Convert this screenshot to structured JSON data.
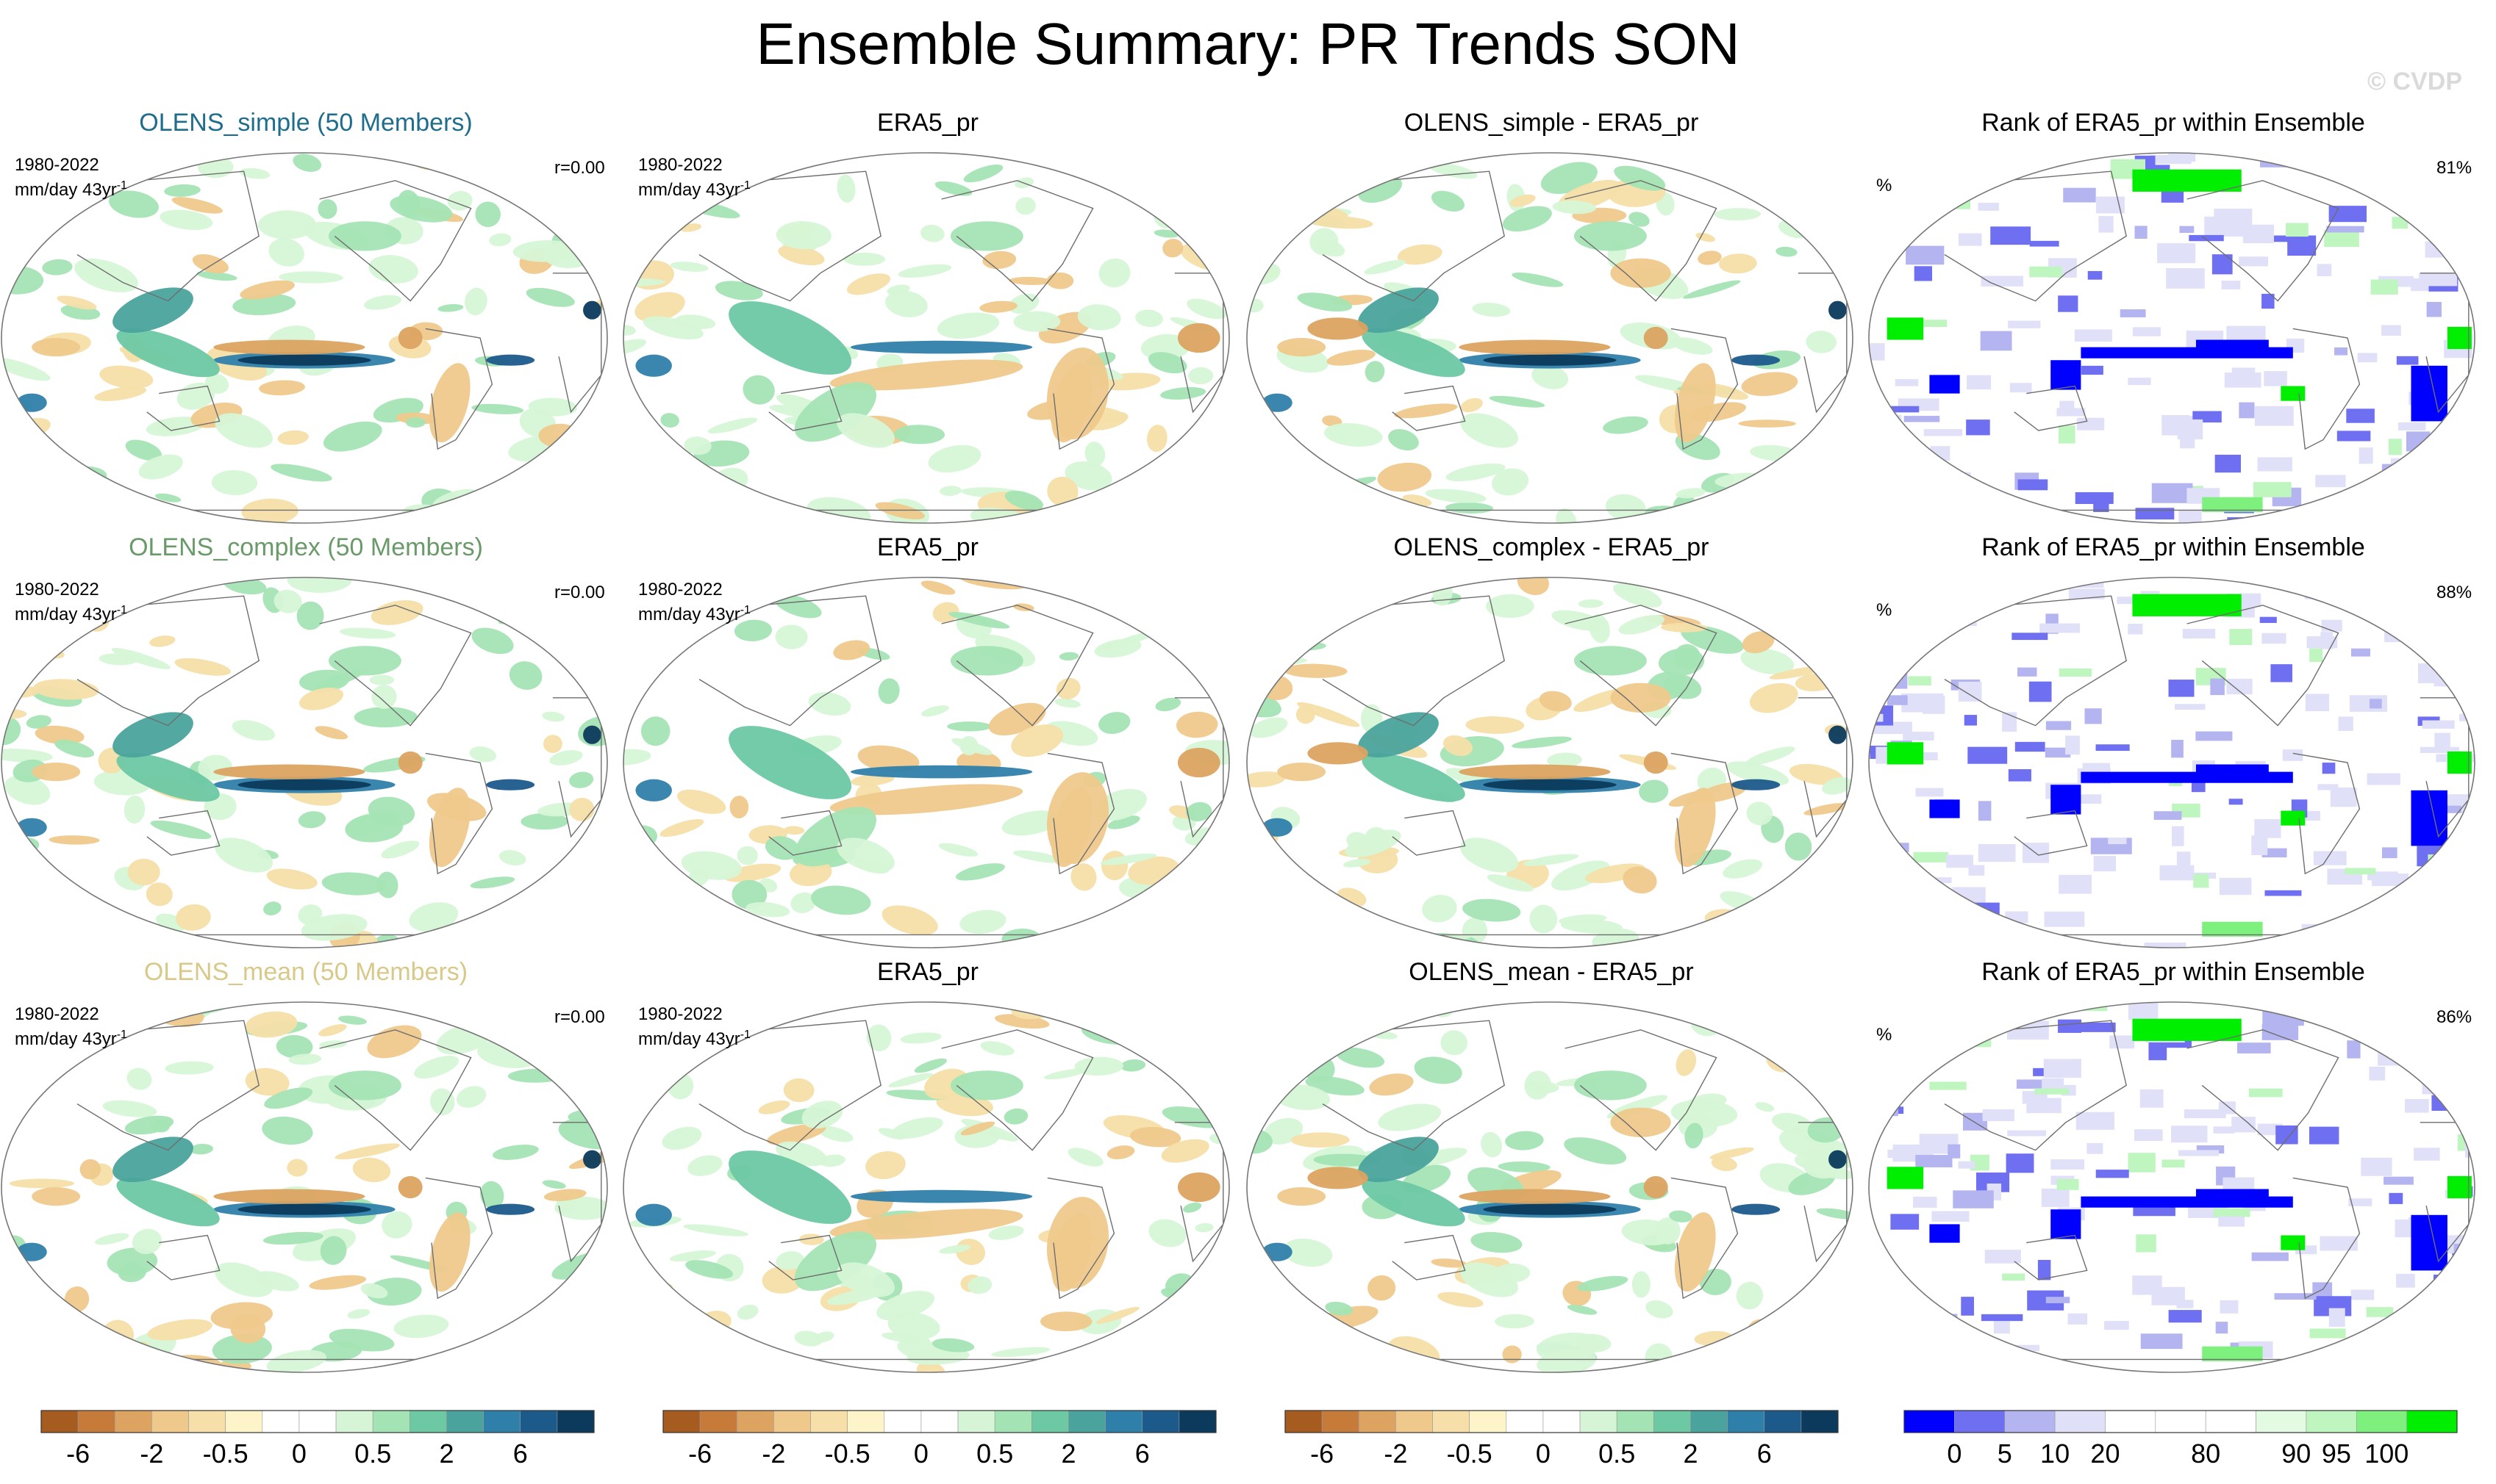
{
  "title": "Ensemble Summary: PR Trends SON",
  "watermark": "© CVDP",
  "period": "1980-2022",
  "units": "mm/day 43yr",
  "units_superscript": "-1",
  "rows": [
    {
      "ensemble_title": "OLENS_simple (50 Members)",
      "ensemble_color": "#1f6d8c",
      "r_label": "r=0.00",
      "obs_title": "ERA5_pr",
      "diff_title": "OLENS_simple - ERA5_pr",
      "rank_title": "Rank of ERA5_pr within Ensemble",
      "rank_symbol": "%",
      "rank_pct": "81%"
    },
    {
      "ensemble_title": "OLENS_complex (50 Members)",
      "ensemble_color": "#6a9a6a",
      "r_label": "r=0.00",
      "obs_title": "ERA5_pr",
      "diff_title": "OLENS_complex - ERA5_pr",
      "rank_title": "Rank of ERA5_pr within Ensemble",
      "rank_symbol": "%",
      "rank_pct": "88%"
    },
    {
      "ensemble_title": "OLENS_mean (50 Members)",
      "ensemble_color": "#d8c98a",
      "r_label": "r=0.00",
      "obs_title": "ERA5_pr",
      "diff_title": "OLENS_mean - ERA5_pr",
      "rank_title": "Rank of ERA5_pr within Ensemble",
      "rank_symbol": "%",
      "rank_pct": "86%"
    }
  ],
  "chart_data": {
    "type": "heatmap",
    "projection": "Robinson (global, Pacific-centered)",
    "trend_colorbar": {
      "units": "mm/day 43yr-1",
      "colors": [
        "#a65c1f",
        "#c77b3a",
        "#dca361",
        "#efc98c",
        "#f6dfa9",
        "#fdf5c9",
        "#ffffff",
        "#ffffff",
        "#d6f5d6",
        "#a4e4b4",
        "#6dc8a4",
        "#4aa39c",
        "#2f7fab",
        "#1c5a8c",
        "#0b3a5c"
      ],
      "tick_labels": [
        "-6",
        "-2",
        "-0.5",
        "0",
        "0.5",
        "2",
        "6"
      ]
    },
    "rank_colorbar": {
      "units": "%",
      "colors": [
        "#0000ff",
        "#6f6ff2",
        "#b4b4f0",
        "#e0e0f8",
        "#ffffff",
        "#ffffff",
        "#ffffff",
        "#e3fbe3",
        "#bff5bf",
        "#7ef07e",
        "#00ee00"
      ],
      "tick_labels": [
        "0",
        "5",
        "10",
        "20",
        "80",
        "90",
        "95",
        "100"
      ]
    },
    "panels": [
      {
        "row": 1,
        "col": 1,
        "title": "OLENS_simple (50 Members)",
        "field": "ensemble-mean trend"
      },
      {
        "row": 1,
        "col": 2,
        "title": "ERA5_pr",
        "field": "observed trend"
      },
      {
        "row": 1,
        "col": 3,
        "title": "OLENS_simple - ERA5_pr",
        "field": "difference"
      },
      {
        "row": 1,
        "col": 4,
        "title": "Rank of ERA5_pr within Ensemble",
        "field": "rank",
        "value": "81%"
      },
      {
        "row": 2,
        "col": 1,
        "title": "OLENS_complex (50 Members)",
        "field": "ensemble-mean trend"
      },
      {
        "row": 2,
        "col": 2,
        "title": "ERA5_pr",
        "field": "observed trend"
      },
      {
        "row": 2,
        "col": 3,
        "title": "OLENS_complex - ERA5_pr",
        "field": "difference"
      },
      {
        "row": 2,
        "col": 4,
        "title": "Rank of ERA5_pr within Ensemble",
        "field": "rank",
        "value": "88%"
      },
      {
        "row": 3,
        "col": 1,
        "title": "OLENS_mean (50 Members)",
        "field": "ensemble-mean trend"
      },
      {
        "row": 3,
        "col": 2,
        "title": "ERA5_pr",
        "field": "observed trend"
      },
      {
        "row": 3,
        "col": 3,
        "title": "OLENS_mean - ERA5_pr",
        "field": "difference"
      },
      {
        "row": 3,
        "col": 4,
        "title": "Rank of ERA5_pr within Ensemble",
        "field": "rank",
        "value": "86%"
      }
    ]
  }
}
